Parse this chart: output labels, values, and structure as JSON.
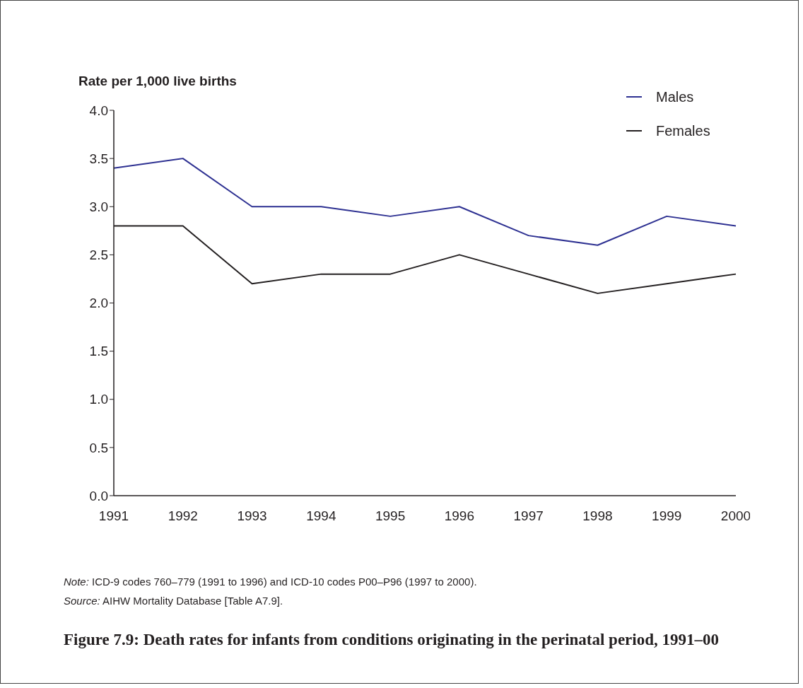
{
  "chart_data": {
    "type": "line",
    "title": "Figure 7.9: Death rates for infants from conditions originating in the perinatal period, 1991–00",
    "ylabel": "Rate per 1,000 live births",
    "categories": [
      "1991",
      "1992",
      "1993",
      "1994",
      "1995",
      "1996",
      "1997",
      "1998",
      "1999",
      "2000"
    ],
    "series": [
      {
        "name": "Males",
        "color": "#2e3192",
        "values": [
          3.4,
          3.5,
          3.0,
          3.0,
          2.9,
          3.0,
          2.7,
          2.6,
          2.9,
          2.8
        ]
      },
      {
        "name": "Females",
        "color": "#231f20",
        "values": [
          2.8,
          2.8,
          2.2,
          2.3,
          2.3,
          2.5,
          2.3,
          2.1,
          2.2,
          2.3
        ]
      }
    ],
    "ylim": [
      0,
      4
    ],
    "yticks": [
      {
        "value": 0,
        "label": "0.0"
      },
      {
        "value": 0.5,
        "label": "0.5"
      },
      {
        "value": 1,
        "label": "1.0"
      },
      {
        "value": 1.5,
        "label": "1.5"
      },
      {
        "value": 2,
        "label": "2.0"
      },
      {
        "value": 2.5,
        "label": "2.5"
      },
      {
        "value": 3,
        "label": "3.0"
      },
      {
        "value": 3.5,
        "label": "3.5"
      },
      {
        "value": 4,
        "label": "4.0"
      }
    ],
    "legend": "top right",
    "annotations": [
      "Note: ICD-9 codes 760–779 (1991 to 1996) and ICD-10 codes P00–P96 (1997 to 2000).",
      "Source: AIHW Mortality Database [Table A7.9]."
    ]
  }
}
